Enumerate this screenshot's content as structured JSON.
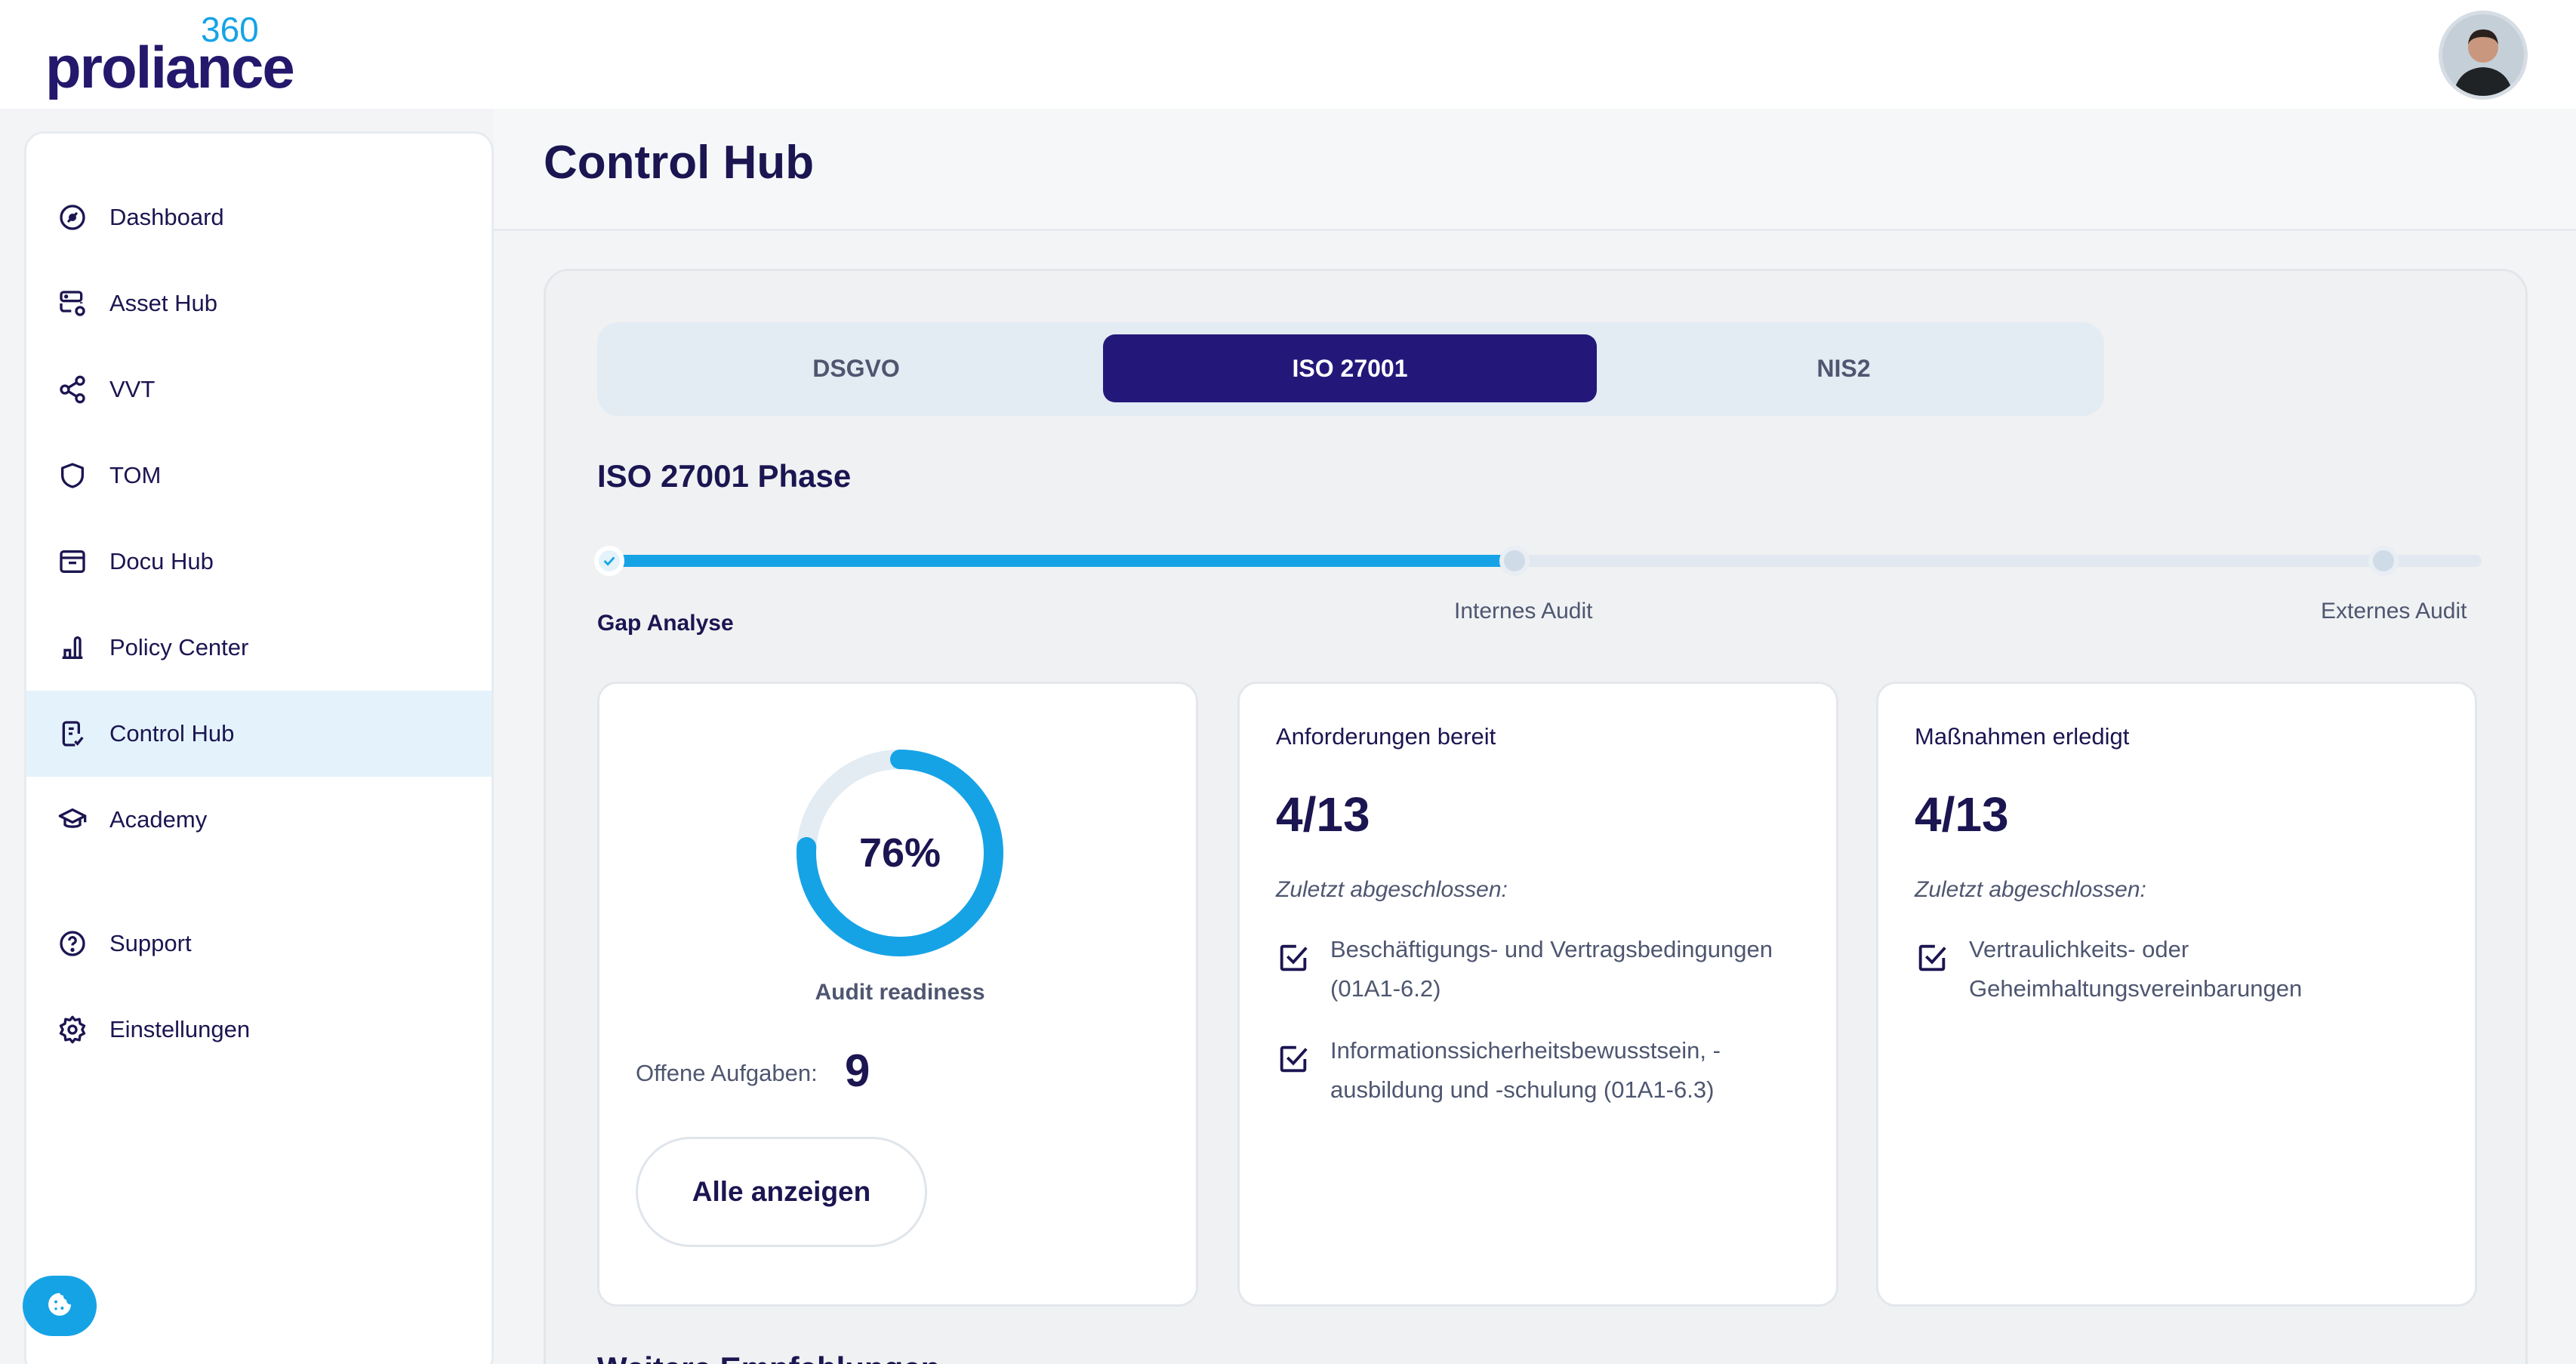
{
  "brand": {
    "name": "proliance",
    "superscript": "360",
    "color_primary": "#23186b",
    "color_accent": "#16a3e6"
  },
  "user": {
    "avatar_icon": "user-avatar"
  },
  "sidebar": {
    "items": [
      {
        "label": "Dashboard",
        "icon": "gauge-icon",
        "active": false
      },
      {
        "label": "Asset Hub",
        "icon": "server-settings-icon",
        "active": false
      },
      {
        "label": "VVT",
        "icon": "share-nodes-icon",
        "active": false
      },
      {
        "label": "TOM",
        "icon": "shield-icon",
        "active": false
      },
      {
        "label": "Docu Hub",
        "icon": "archive-box-icon",
        "active": false
      },
      {
        "label": "Policy Center",
        "icon": "policy-icon",
        "active": false
      },
      {
        "label": "Control Hub",
        "icon": "checklist-document-icon",
        "active": true
      },
      {
        "label": "Academy",
        "icon": "graduation-cap-icon",
        "active": false
      }
    ],
    "bottom_items": [
      {
        "label": "Support",
        "icon": "question-circle-icon"
      },
      {
        "label": "Einstellungen",
        "icon": "gear-icon"
      }
    ],
    "cookie_icon": "cookie-icon"
  },
  "page": {
    "title": "Control Hub"
  },
  "tabs": [
    {
      "label": "DSGVO",
      "active": false
    },
    {
      "label": "ISO 27001",
      "active": true
    },
    {
      "label": "NIS2",
      "active": false
    }
  ],
  "phase": {
    "title": "ISO 27001 Phase",
    "progress": 0.49,
    "steps": [
      {
        "label": "Gap Analyse",
        "state": "current"
      },
      {
        "label": "Internes Audit",
        "state": "pending"
      },
      {
        "label": "Externes Audit",
        "state": "pending"
      }
    ]
  },
  "readiness": {
    "percent_label": "76%",
    "percent_value": 76,
    "caption": "Audit readiness",
    "open_tasks_label": "Offene Aufgaben:",
    "open_tasks_value": "9",
    "show_all_label": "Alle anzeigen"
  },
  "requirements": {
    "label": "Anforderungen bereit",
    "value": "4/13",
    "sub": "Zuletzt abgeschlossen:",
    "items": [
      {
        "line1": "Beschäftigungs- und Vertragsbedingungen",
        "line2": "(01A1-6.2)"
      },
      {
        "line1": "Informationssicherheitsbewusstsein, -",
        "line2": "ausbildung und -schulung (01A1-6.3)"
      }
    ]
  },
  "measures": {
    "label": "Maßnahmen erledigt",
    "value": "4/13",
    "sub": "Zuletzt abgeschlossen:",
    "items": [
      {
        "line1": "Vertraulichkeits- oder",
        "line2": "Geheimhaltungsvereinbarungen"
      }
    ]
  },
  "next_section": {
    "title": "Weitere Empfehlungen"
  }
}
